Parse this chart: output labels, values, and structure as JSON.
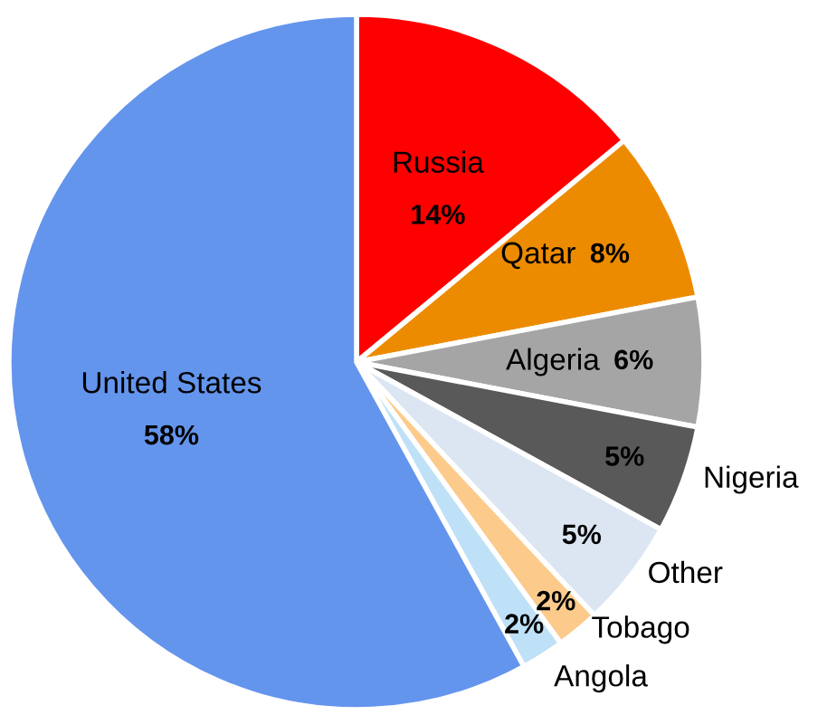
{
  "chart_data": {
    "type": "pie",
    "categories": [
      "Russia",
      "Qatar",
      "Algeria",
      "Nigeria",
      "Other",
      "Tobago",
      "Angola",
      "United States"
    ],
    "values": [
      14,
      8,
      6,
      5,
      5,
      2,
      2,
      58
    ],
    "colors": [
      "#ff0000",
      "#ed8b00",
      "#a5a5a5",
      "#595959",
      "#dce6f2",
      "#fccb8c",
      "#bfe1f7",
      "#6495ed"
    ],
    "value_labels": [
      "14%",
      "8%",
      "6%",
      "5%",
      "5%",
      "2%",
      "2%",
      "58%"
    ],
    "legend": false
  }
}
